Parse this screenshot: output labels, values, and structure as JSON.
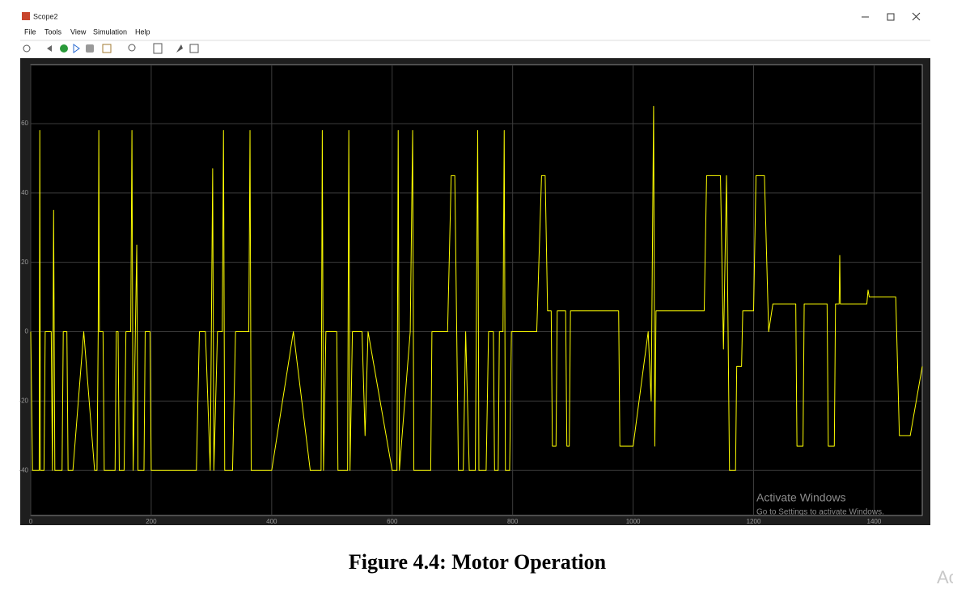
{
  "window": {
    "title": "Scope2",
    "menu": [
      "File",
      "Tools",
      "View",
      "Simulation",
      "Help"
    ]
  },
  "chart_data": {
    "type": "line",
    "x": [
      0,
      3,
      14,
      15,
      16,
      22,
      24,
      34,
      36,
      38,
      40,
      52,
      54,
      60,
      62,
      70,
      88,
      106,
      110,
      112,
      113,
      114,
      120,
      122,
      140,
      142,
      145,
      147,
      155,
      158,
      166,
      168,
      170,
      176,
      178,
      188,
      190,
      198,
      200,
      275,
      280,
      290,
      298,
      302,
      304,
      310,
      318,
      320,
      322,
      335,
      340,
      362,
      364,
      366,
      380,
      400,
      436,
      464,
      482,
      484,
      486,
      490,
      508,
      510,
      526,
      528,
      530,
      534,
      550,
      555,
      560,
      600,
      608,
      610,
      612,
      630,
      634,
      636,
      664,
      666,
      692,
      698,
      704,
      710,
      718,
      722,
      728,
      738,
      742,
      744,
      756,
      760,
      768,
      770,
      776,
      778,
      784,
      786,
      788,
      795,
      798,
      840,
      848,
      854,
      858,
      864,
      866,
      872,
      874,
      888,
      890,
      894,
      896,
      976,
      978,
      1000,
      1025,
      1030,
      1034,
      1036,
      1038,
      1118,
      1122,
      1145,
      1150,
      1155,
      1160,
      1170,
      1172,
      1180,
      1182,
      1200,
      1204,
      1218,
      1225,
      1232,
      1270,
      1272,
      1282,
      1284,
      1322,
      1324,
      1334,
      1336,
      1342,
      1343,
      1344,
      1388,
      1390,
      1392,
      1436,
      1442,
      1460,
      1480
    ],
    "series": [
      {
        "color": "#ffff00",
        "values": [
          0,
          -40,
          -40,
          58,
          -40,
          -40,
          0,
          0,
          -40,
          35,
          -40,
          -40,
          0,
          0,
          -40,
          -40,
          0,
          -40,
          -40,
          0,
          58,
          0,
          0,
          -40,
          -40,
          0,
          0,
          -40,
          -40,
          0,
          0,
          58,
          -40,
          25,
          -40,
          -40,
          0,
          0,
          -40,
          -40,
          0,
          0,
          -40,
          47,
          -40,
          0,
          0,
          58,
          -40,
          -40,
          0,
          0,
          58,
          -40,
          -40,
          -40,
          0,
          -40,
          -40,
          58,
          -40,
          0,
          0,
          -40,
          -40,
          58,
          -40,
          0,
          0,
          -30,
          0,
          -40,
          -40,
          58,
          -40,
          0,
          58,
          -40,
          -40,
          0,
          0,
          45,
          45,
          -40,
          -40,
          0,
          -40,
          -40,
          58,
          -40,
          -40,
          0,
          0,
          -40,
          -40,
          0,
          0,
          58,
          -40,
          -40,
          0,
          0,
          45,
          45,
          6,
          6,
          -33,
          -33,
          6,
          6,
          -33,
          -33,
          6,
          6,
          -33,
          -33,
          0,
          -20,
          65,
          -33,
          6,
          6,
          45,
          45,
          -5,
          45,
          -40,
          -40,
          -10,
          -10,
          6,
          6,
          45,
          45,
          0,
          8,
          8,
          -33,
          -33,
          8,
          8,
          -33,
          -33,
          8,
          8,
          22,
          8,
          8,
          12,
          10,
          10,
          -30,
          -30,
          -10
        ]
      }
    ],
    "xlim": [
      0,
      1480
    ],
    "ylim": [
      -53,
      77
    ],
    "xticks": [
      0,
      200,
      400,
      600,
      800,
      1000,
      1200,
      1400
    ],
    "yticks": [
      -40,
      -20,
      0,
      20,
      40,
      60
    ],
    "grid": true
  },
  "watermark": {
    "title": "Activate Windows",
    "subtitle": "Go to Settings to activate Windows."
  },
  "caption": "Figure 4.4: Motor Operation",
  "corner_text": "Ac"
}
